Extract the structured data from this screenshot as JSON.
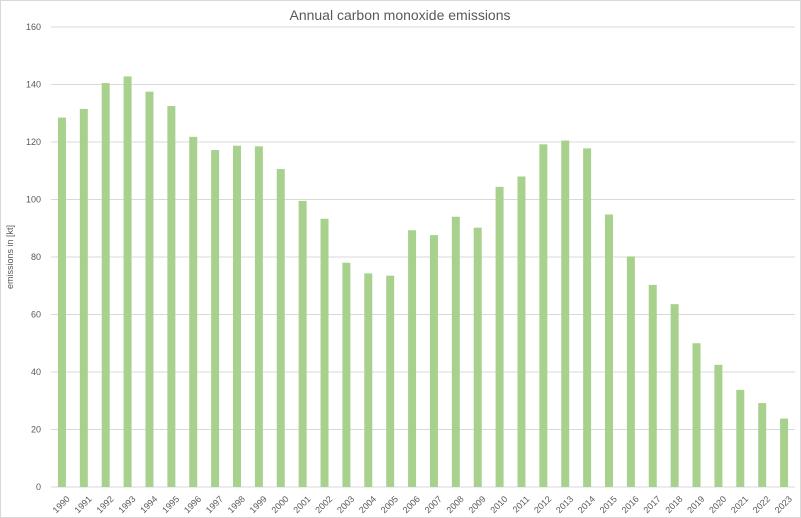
{
  "chart_data": {
    "type": "bar",
    "title": "Annual carbon monoxide emissions",
    "xlabel": "",
    "ylabel": "emissions in [kt]",
    "ylim": [
      0,
      160
    ],
    "yticks": [
      "0",
      "20",
      "40",
      "60",
      "80",
      "100",
      "120",
      "140",
      "160"
    ],
    "grid": "horizontal",
    "legend": "none",
    "bar_color": "#a9d18e",
    "grid_color": "#d9d9d9",
    "text_color": "#595959",
    "categories": [
      "1990",
      "1991",
      "1992",
      "1993",
      "1994",
      "1995",
      "1996",
      "1997",
      "1998",
      "1999",
      "2000",
      "2001",
      "2002",
      "2003",
      "2004",
      "2005",
      "2006",
      "2007",
      "2008",
      "2009",
      "2010",
      "2011",
      "2012",
      "2013",
      "2014",
      "2015",
      "2016",
      "2017",
      "2018",
      "2019",
      "2020",
      "2021",
      "2022",
      "2023"
    ],
    "values": [
      128.5,
      131.5,
      140.5,
      142.8,
      137.5,
      132.5,
      121.8,
      117.2,
      118.7,
      118.5,
      110.6,
      99.5,
      93.3,
      78.0,
      74.3,
      73.5,
      89.3,
      87.6,
      94.0,
      90.2,
      104.4,
      108.0,
      119.2,
      120.5,
      117.8,
      94.8,
      80.2,
      70.3,
      63.6,
      50.0,
      42.5,
      33.8,
      29.2,
      23.8
    ]
  }
}
